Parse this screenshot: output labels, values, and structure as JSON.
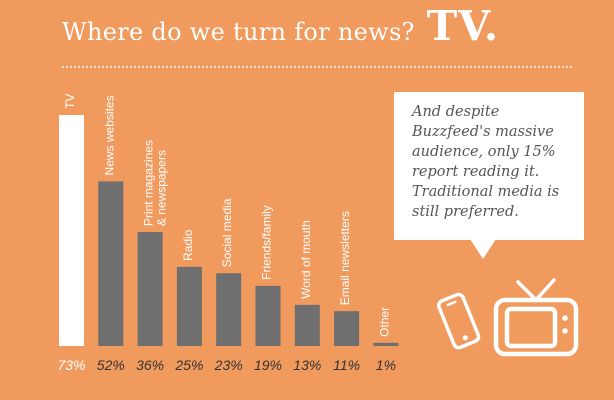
{
  "title": {
    "main": "Where do we turn for news?",
    "emphasis": "TV."
  },
  "callout": {
    "text": "And despite Buzzfeed's massive audience, only 15% report reading it. Traditional media is still preferred."
  },
  "colors": {
    "background": "#F09A5E",
    "bar_highlight": "#FFFFFF",
    "bar_default": "#6F6F6F",
    "text_light": "#FFFFFF"
  },
  "icons": [
    "phone-icon",
    "tv-icon"
  ],
  "chart_data": {
    "type": "bar",
    "categories": [
      "TV",
      "News websites",
      "Print magazines & newspapers",
      "Radio",
      "Social media",
      "Friends/family",
      "Word of mouth",
      "Email newsletters",
      "Other"
    ],
    "category_label_lines": [
      [
        "TV"
      ],
      [
        "News websites"
      ],
      [
        "Print magazines",
        "& newspapers"
      ],
      [
        "Radio"
      ],
      [
        "Social media"
      ],
      [
        "Friends/family"
      ],
      [
        "Word of mouth"
      ],
      [
        "Email newsletters"
      ],
      [
        "Other"
      ]
    ],
    "values": [
      73,
      52,
      36,
      25,
      23,
      19,
      13,
      11,
      1
    ],
    "value_labels": [
      "73%",
      "52%",
      "36%",
      "25%",
      "23%",
      "19%",
      "13%",
      "11%",
      "1%"
    ],
    "highlight_index": 0,
    "title": "",
    "xlabel": "",
    "ylabel": "",
    "ylim": [
      0,
      73
    ],
    "grid": false,
    "legend": "none"
  }
}
